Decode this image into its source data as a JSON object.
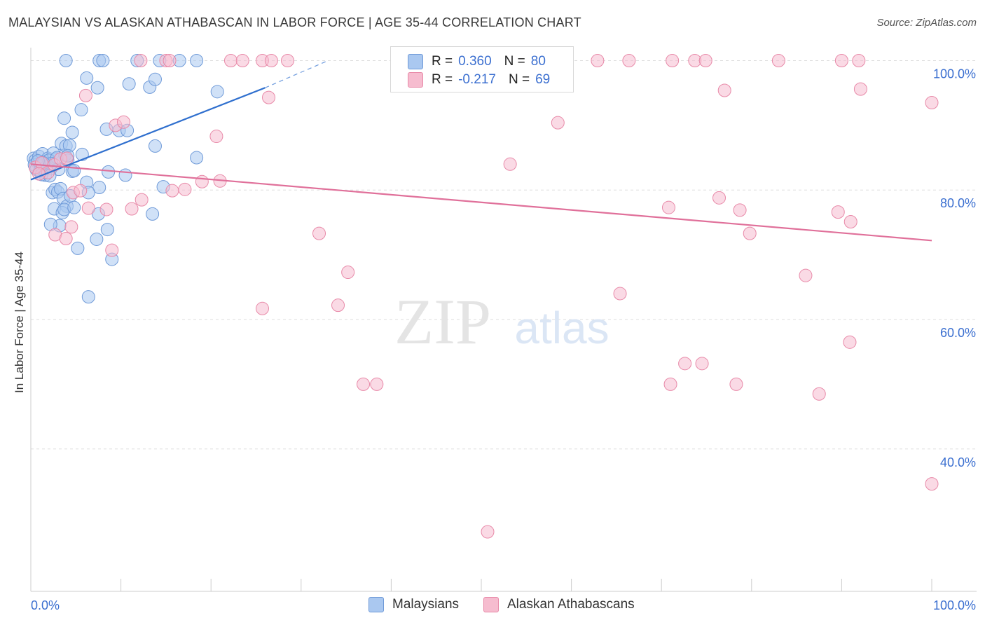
{
  "title": "MALAYSIAN VS ALASKAN ATHABASCAN IN LABOR FORCE | AGE 35-44 CORRELATION CHART",
  "source": "Source: ZipAtlas.com",
  "watermark": {
    "zip": "ZIP",
    "atlas": "atlas"
  },
  "colors": {
    "blue_fill": "#aac8f0",
    "blue_stroke": "#6f9ad8",
    "blue_line": "#2f6fce",
    "pink_fill": "#f6bccf",
    "pink_stroke": "#e889a8",
    "pink_line": "#e0709a",
    "axis_text": "#3b6fd0"
  },
  "legend": {
    "r_label": "R =",
    "n_label": "N =",
    "series": [
      {
        "name": "Malaysians",
        "r": "0.360",
        "n": "80"
      },
      {
        "name": "Alaskan Athabascans",
        "r": "-0.217",
        "n": "69"
      }
    ]
  },
  "chart_data": {
    "type": "scatter",
    "title": "MALAYSIAN VS ALASKAN ATHABASCAN IN LABOR FORCE | AGE 35-44 CORRELATION CHART",
    "xlabel": "",
    "ylabel": "In Labor Force | Age 35-44",
    "xlim": [
      0,
      100
    ],
    "ylim": [
      18,
      102
    ],
    "x_tick_labels": {
      "left": "0.0%",
      "right": "100.0%"
    },
    "y_ticks": [
      {
        "value": 100,
        "label": "100.0%"
      },
      {
        "value": 80,
        "label": "80.0%"
      },
      {
        "value": 60,
        "label": "60.0%"
      },
      {
        "value": 40,
        "label": "40.0%"
      }
    ],
    "series": [
      {
        "name": "Malaysians",
        "trend": {
          "x0": 0.0,
          "y0": 81.6,
          "x1": 26.0,
          "y1": 95.8,
          "dash_x1": 33.0,
          "dash_y1": 100.0
        },
        "points": [
          [
            0.3,
            84.9
          ],
          [
            0.5,
            84.6
          ],
          [
            0.7,
            84.3
          ],
          [
            0.4,
            83.9
          ],
          [
            0.9,
            85.2
          ],
          [
            1.1,
            83.8
          ],
          [
            1.3,
            85.6
          ],
          [
            1.5,
            84.4
          ],
          [
            1.7,
            83.6
          ],
          [
            0.6,
            83.2
          ],
          [
            1.0,
            82.9
          ],
          [
            1.9,
            84.9
          ],
          [
            2.2,
            83.3
          ],
          [
            2.5,
            85.7
          ],
          [
            2.8,
            84.8
          ],
          [
            3.1,
            83.2
          ],
          [
            3.4,
            87.2
          ],
          [
            3.8,
            85.4
          ],
          [
            4.1,
            84.6
          ],
          [
            4.6,
            82.9
          ],
          [
            1.6,
            82.3
          ],
          [
            2.4,
            79.6
          ],
          [
            2.7,
            80.1
          ],
          [
            3.0,
            79.7
          ],
          [
            3.3,
            80.2
          ],
          [
            3.6,
            78.7
          ],
          [
            4.0,
            77.5
          ],
          [
            4.4,
            79.1
          ],
          [
            2.6,
            77.1
          ],
          [
            3.5,
            76.5
          ],
          [
            3.7,
            77.0
          ],
          [
            4.8,
            83.0
          ],
          [
            6.2,
            81.2
          ],
          [
            7.6,
            80.4
          ],
          [
            10.5,
            82.3
          ],
          [
            14.7,
            80.5
          ],
          [
            18.4,
            85.0
          ],
          [
            3.2,
            74.5
          ],
          [
            7.5,
            76.3
          ],
          [
            13.5,
            76.3
          ],
          [
            2.2,
            74.7
          ],
          [
            5.2,
            71.0
          ],
          [
            7.3,
            72.4
          ],
          [
            8.5,
            73.9
          ],
          [
            9.0,
            69.3
          ],
          [
            6.4,
            63.5
          ],
          [
            4.8,
            77.3
          ],
          [
            3.9,
            86.8
          ],
          [
            4.3,
            86.9
          ],
          [
            4.6,
            88.9
          ],
          [
            3.7,
            91.1
          ],
          [
            8.4,
            89.4
          ],
          [
            9.8,
            89.2
          ],
          [
            10.7,
            89.2
          ],
          [
            13.8,
            86.8
          ],
          [
            5.6,
            92.4
          ],
          [
            6.2,
            97.3
          ],
          [
            7.4,
            95.8
          ],
          [
            10.9,
            96.4
          ],
          [
            13.2,
            95.9
          ],
          [
            13.8,
            97.1
          ],
          [
            20.7,
            95.2
          ],
          [
            7.6,
            100.0
          ],
          [
            8.0,
            100.0
          ],
          [
            11.8,
            100.0
          ],
          [
            14.3,
            100.0
          ],
          [
            16.5,
            100.0
          ],
          [
            18.4,
            100.0
          ],
          [
            3.9,
            100.0
          ],
          [
            2.0,
            84.6
          ],
          [
            2.9,
            85.0
          ],
          [
            4.1,
            85.3
          ],
          [
            1.2,
            82.4
          ],
          [
            2.1,
            82.2
          ],
          [
            5.7,
            85.5
          ],
          [
            6.4,
            79.6
          ],
          [
            8.6,
            82.8
          ],
          [
            2.3,
            84.1
          ],
          [
            1.4,
            84.2
          ],
          [
            0.8,
            84.5
          ]
        ]
      },
      {
        "name": "Alaskan Athabascans",
        "trend": {
          "x0": 0.0,
          "y0": 84.0,
          "x1": 100.0,
          "y1": 72.2
        },
        "points": [
          [
            0.5,
            83.5
          ],
          [
            1.2,
            84.2
          ],
          [
            1.9,
            82.7
          ],
          [
            2.6,
            83.9
          ],
          [
            0.9,
            82.5
          ],
          [
            3.3,
            84.8
          ],
          [
            4.0,
            84.9
          ],
          [
            4.7,
            79.6
          ],
          [
            5.5,
            79.9
          ],
          [
            6.4,
            77.2
          ],
          [
            8.4,
            77.0
          ],
          [
            11.2,
            77.1
          ],
          [
            12.3,
            78.5
          ],
          [
            15.7,
            79.9
          ],
          [
            17.1,
            80.1
          ],
          [
            19.0,
            81.3
          ],
          [
            21.0,
            81.4
          ],
          [
            2.7,
            73.1
          ],
          [
            3.9,
            72.5
          ],
          [
            4.5,
            74.3
          ],
          [
            9.0,
            70.7
          ],
          [
            9.4,
            90.0
          ],
          [
            10.3,
            90.5
          ],
          [
            20.6,
            88.3
          ],
          [
            26.4,
            94.3
          ],
          [
            6.1,
            94.6
          ],
          [
            12.2,
            100.0
          ],
          [
            15.0,
            100.0
          ],
          [
            15.4,
            100.0
          ],
          [
            22.2,
            100.0
          ],
          [
            23.5,
            100.0
          ],
          [
            25.7,
            100.0
          ],
          [
            26.7,
            100.0
          ],
          [
            28.5,
            100.0
          ],
          [
            62.9,
            100.0
          ],
          [
            66.4,
            100.0
          ],
          [
            71.2,
            100.0
          ],
          [
            73.7,
            100.0
          ],
          [
            74.9,
            100.0
          ],
          [
            83.0,
            100.0
          ],
          [
            90.0,
            100.0
          ],
          [
            91.9,
            100.0
          ],
          [
            77.0,
            95.4
          ],
          [
            92.1,
            95.6
          ],
          [
            100.0,
            93.5
          ],
          [
            58.5,
            90.4
          ],
          [
            53.2,
            84.0
          ],
          [
            32.0,
            73.3
          ],
          [
            35.2,
            67.3
          ],
          [
            34.1,
            62.2
          ],
          [
            25.7,
            61.7
          ],
          [
            70.8,
            77.3
          ],
          [
            76.4,
            78.8
          ],
          [
            78.7,
            76.9
          ],
          [
            79.8,
            73.3
          ],
          [
            89.6,
            76.6
          ],
          [
            91.0,
            75.1
          ],
          [
            86.0,
            66.8
          ],
          [
            65.4,
            64.0
          ],
          [
            90.9,
            56.5
          ],
          [
            72.6,
            53.2
          ],
          [
            74.5,
            53.2
          ],
          [
            36.9,
            50.0
          ],
          [
            38.4,
            50.0
          ],
          [
            71.0,
            50.0
          ],
          [
            78.3,
            50.0
          ],
          [
            87.5,
            48.5
          ],
          [
            100.0,
            34.6
          ],
          [
            50.7,
            27.2
          ]
        ]
      }
    ]
  }
}
